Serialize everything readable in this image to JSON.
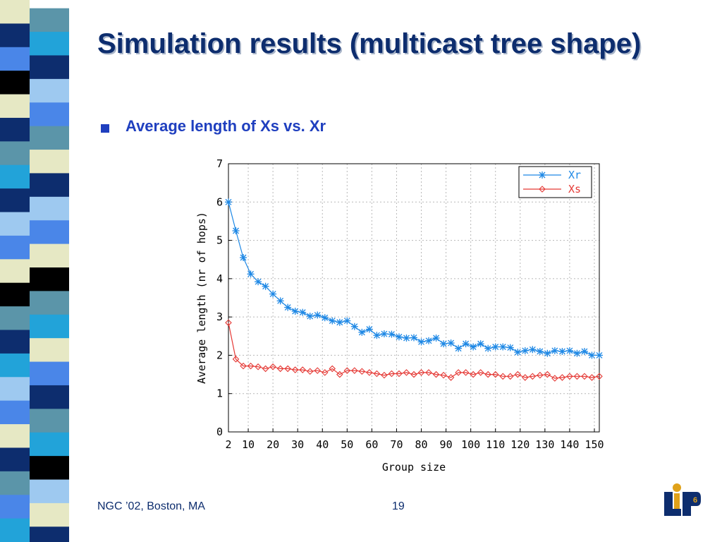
{
  "slide": {
    "title": "Simulation results (multicast tree shape)",
    "bullet": "Average length of Xs vs. Xr",
    "footer_left": "NGC ’02, Boston, MA",
    "page_number": "19",
    "stripe_colors": [
      "#0d2d6e",
      "#4a86e8",
      "#000000",
      "#e6e8c4",
      "#5b95a9",
      "#22a3d9",
      "#9ec9f0",
      "#ffffff"
    ]
  },
  "logo": {
    "letters": [
      "L",
      "P"
    ],
    "number": "6"
  },
  "chart_data": {
    "type": "line",
    "title": "",
    "xlabel": "Group size",
    "ylabel": "Average length (nr of hops)",
    "xlim": [
      2,
      152
    ],
    "ylim": [
      0,
      7
    ],
    "x_ticks": [
      2,
      10,
      20,
      30,
      40,
      50,
      60,
      70,
      80,
      90,
      100,
      110,
      120,
      130,
      140,
      150
    ],
    "y_ticks": [
      0,
      1,
      2,
      3,
      4,
      5,
      6,
      7
    ],
    "grid": true,
    "legend_position": "top-right",
    "x": [
      2,
      5,
      8,
      11,
      14,
      17,
      20,
      23,
      26,
      29,
      32,
      35,
      38,
      41,
      44,
      47,
      50,
      53,
      56,
      59,
      62,
      65,
      68,
      71,
      74,
      77,
      80,
      83,
      86,
      89,
      92,
      95,
      98,
      101,
      104,
      107,
      110,
      113,
      116,
      119,
      122,
      125,
      128,
      131,
      134,
      137,
      140,
      143,
      146,
      149,
      152
    ],
    "series": [
      {
        "name": "Xr",
        "color": "#1e88e5",
        "marker": "star",
        "values": [
          6.0,
          5.25,
          4.55,
          4.12,
          3.92,
          3.8,
          3.6,
          3.42,
          3.25,
          3.15,
          3.12,
          3.02,
          3.05,
          2.98,
          2.9,
          2.86,
          2.9,
          2.75,
          2.6,
          2.68,
          2.52,
          2.56,
          2.55,
          2.48,
          2.45,
          2.46,
          2.35,
          2.38,
          2.45,
          2.3,
          2.32,
          2.18,
          2.3,
          2.22,
          2.3,
          2.18,
          2.22,
          2.22,
          2.2,
          2.08,
          2.12,
          2.15,
          2.1,
          2.05,
          2.12,
          2.1,
          2.12,
          2.05,
          2.1,
          2.0,
          2.0
        ]
      },
      {
        "name": "Xs",
        "color": "#e53935",
        "marker": "diamond",
        "values": [
          2.85,
          1.9,
          1.72,
          1.72,
          1.7,
          1.65,
          1.7,
          1.65,
          1.65,
          1.62,
          1.62,
          1.58,
          1.6,
          1.55,
          1.65,
          1.5,
          1.6,
          1.6,
          1.58,
          1.55,
          1.52,
          1.48,
          1.52,
          1.52,
          1.55,
          1.5,
          1.55,
          1.55,
          1.5,
          1.48,
          1.42,
          1.55,
          1.55,
          1.5,
          1.55,
          1.5,
          1.5,
          1.45,
          1.45,
          1.5,
          1.42,
          1.45,
          1.48,
          1.5,
          1.4,
          1.42,
          1.45,
          1.45,
          1.45,
          1.42,
          1.45
        ]
      }
    ]
  }
}
